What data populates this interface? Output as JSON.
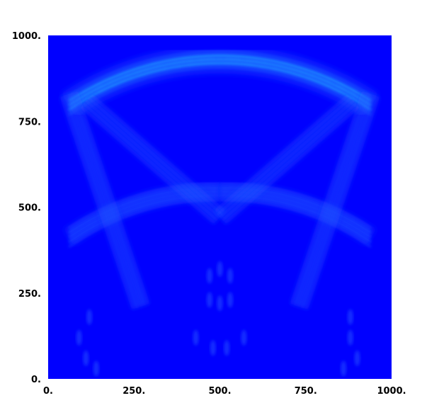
{
  "chart_data": {
    "type": "heatmap",
    "title": "",
    "xlabel": "",
    "ylabel": "",
    "xlim": [
      0,
      1000
    ],
    "ylim": [
      0,
      1000
    ],
    "x_ticks": [
      "0.",
      "250.",
      "500.",
      "750.",
      "1000."
    ],
    "y_ticks": [
      "0.",
      "250.",
      "500.",
      "750.",
      "1000."
    ],
    "grid": false,
    "legend": "none",
    "colormap": {
      "background": "#0000ff",
      "low": "#1a3cff",
      "mid": "#2a7bff",
      "high": "#2ee0ff"
    },
    "features": [
      {
        "name": "upper-arc",
        "center_x": 500,
        "center_y": 140,
        "radius": 790,
        "x_from": 60,
        "x_to": 940,
        "intensity": 1.0
      },
      {
        "name": "left-lower-arc",
        "center_x": 490,
        "center_y": -215,
        "radius": 760,
        "x_from": 60,
        "x_to": 500,
        "intensity": 0.7
      },
      {
        "name": "right-lower-arc",
        "center_x": 510,
        "center_y": -215,
        "radius": 760,
        "x_from": 500,
        "x_to": 940,
        "intensity": 0.7
      },
      {
        "name": "left-diagonal-band",
        "from": [
          60,
          830
        ],
        "to": [
          270,
          210
        ],
        "intensity": 0.5
      },
      {
        "name": "right-diagonal-band",
        "from": [
          940,
          830
        ],
        "to": [
          730,
          210
        ],
        "intensity": 0.5
      },
      {
        "name": "left-inner-band",
        "from": [
          110,
          810
        ],
        "to": [
          500,
          470
        ],
        "intensity": 0.45
      },
      {
        "name": "right-inner-band",
        "from": [
          890,
          810
        ],
        "to": [
          500,
          470
        ],
        "intensity": 0.45
      }
    ]
  }
}
